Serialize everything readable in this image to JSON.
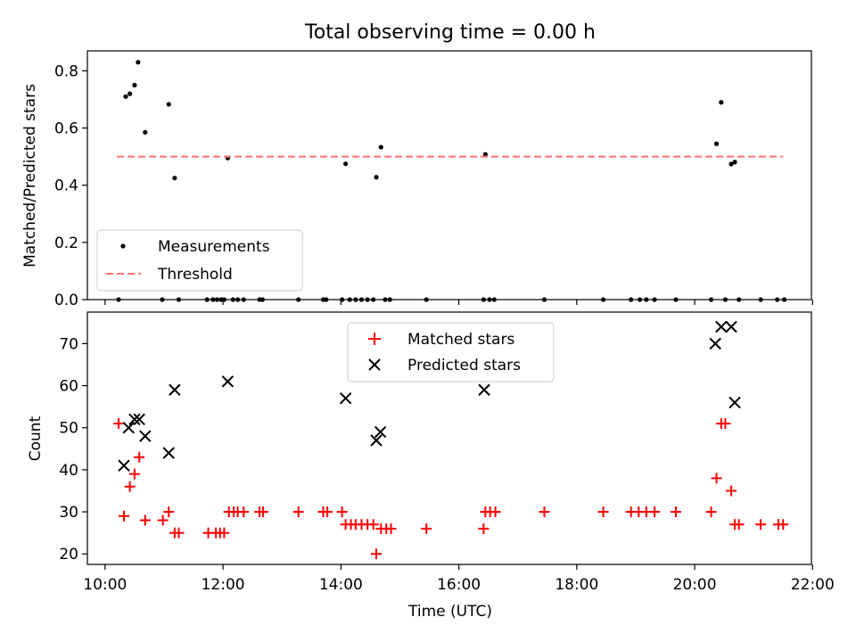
{
  "figure": {
    "title": "Total observing time = 0.00 h",
    "xlabel": "Time (UTC)"
  },
  "chart_data": [
    {
      "type": "scatter",
      "ylabel": "Matched/Predicted stars",
      "xlim": [
        9.7,
        21.98
      ],
      "ylim": [
        0,
        0.87
      ],
      "yticks": [
        0.0,
        0.2,
        0.4,
        0.6,
        0.8
      ],
      "ytick_labels": [
        "0.0",
        "0.2",
        "0.4",
        "0.6",
        "0.8"
      ],
      "legend_position": "lower-left",
      "series": [
        {
          "name": "Measurements",
          "marker": "dot",
          "color": "#000000",
          "x": [
            10.35,
            10.42,
            10.5,
            10.56,
            10.68,
            11.08,
            11.18,
            12.08,
            14.08,
            14.6,
            14.68,
            16.45,
            20.37,
            20.45,
            20.62,
            20.68,
            10.23,
            10.97,
            11.25,
            11.73,
            11.83,
            11.9,
            11.97,
            12.02,
            12.17,
            12.25,
            12.35,
            12.62,
            12.67,
            13.28,
            13.7,
            13.75,
            14.02,
            14.15,
            14.25,
            14.35,
            14.45,
            14.55,
            14.75,
            14.83,
            15.45,
            16.42,
            16.52,
            16.6,
            17.45,
            18.45,
            18.92,
            19.07,
            19.18,
            19.32,
            19.68,
            20.28,
            20.52,
            20.75,
            21.12,
            21.4,
            21.52
          ],
          "y": [
            0.71,
            0.72,
            0.75,
            0.83,
            0.585,
            0.683,
            0.425,
            0.495,
            0.475,
            0.428,
            0.533,
            0.508,
            0.545,
            0.69,
            0.474,
            0.481,
            0,
            0,
            0,
            0,
            0,
            0,
            0,
            0,
            0,
            0,
            0,
            0,
            0,
            0,
            0,
            0,
            0,
            0,
            0,
            0,
            0,
            0,
            0,
            0,
            0,
            0,
            0,
            0,
            0,
            0,
            0,
            0,
            0,
            0,
            0,
            0,
            0,
            0,
            0,
            0,
            0
          ]
        },
        {
          "name": "Threshold",
          "marker": "dashed-line",
          "color": "#ff7070",
          "x": [
            10.2,
            21.5
          ],
          "y": [
            0.5,
            0.5
          ]
        }
      ]
    },
    {
      "type": "scatter",
      "ylabel": "Count",
      "xlim": [
        9.7,
        21.98
      ],
      "ylim": [
        17.5,
        77.5
      ],
      "yticks": [
        20,
        30,
        40,
        50,
        60,
        70
      ],
      "ytick_labels": [
        "20",
        "30",
        "40",
        "50",
        "60",
        "70"
      ],
      "xticks": [
        10,
        12,
        14,
        16,
        18,
        20,
        22
      ],
      "xtick_labels": [
        "10:00",
        "12:00",
        "14:00",
        "16:00",
        "18:00",
        "20:00",
        "22:00"
      ],
      "legend_position": "top-center",
      "series": [
        {
          "name": "Matched stars",
          "marker": "plus",
          "color": "#ff0000",
          "x": [
            10.23,
            10.32,
            10.42,
            10.5,
            10.58,
            10.68,
            10.98,
            11.08,
            11.18,
            11.25,
            11.75,
            11.88,
            11.95,
            12.02,
            12.1,
            12.18,
            12.25,
            12.35,
            12.62,
            12.68,
            13.28,
            13.7,
            13.77,
            14.02,
            14.08,
            14.17,
            14.25,
            14.35,
            14.45,
            14.55,
            14.6,
            14.68,
            14.77,
            14.85,
            15.45,
            16.42,
            16.45,
            16.53,
            16.62,
            17.45,
            18.45,
            18.92,
            19.05,
            19.18,
            19.32,
            19.68,
            20.28,
            20.37,
            20.45,
            20.52,
            20.62,
            20.68,
            20.75,
            21.12,
            21.42,
            21.5
          ],
          "y": [
            51,
            29,
            36,
            39,
            43,
            28,
            28,
            30,
            25,
            25,
            25,
            25,
            25,
            25,
            30,
            30,
            30,
            30,
            30,
            30,
            30,
            30,
            30,
            30,
            27,
            27,
            27,
            27,
            27,
            27,
            20,
            26,
            26,
            26,
            26,
            26,
            30,
            30,
            30,
            30,
            30,
            30,
            30,
            30,
            30,
            30,
            30,
            38,
            51,
            51,
            35,
            27,
            27,
            27,
            27,
            27
          ]
        },
        {
          "name": "Predicted stars",
          "marker": "x",
          "color": "#000000",
          "x": [
            10.32,
            10.4,
            10.5,
            10.58,
            10.68,
            11.08,
            11.18,
            12.08,
            14.08,
            14.6,
            14.67,
            16.43,
            20.35,
            20.45,
            20.62,
            20.68
          ],
          "y": [
            41,
            50,
            52,
            52,
            48,
            44,
            59,
            61,
            57,
            47,
            49,
            59,
            70,
            74,
            74,
            56
          ]
        }
      ]
    }
  ]
}
